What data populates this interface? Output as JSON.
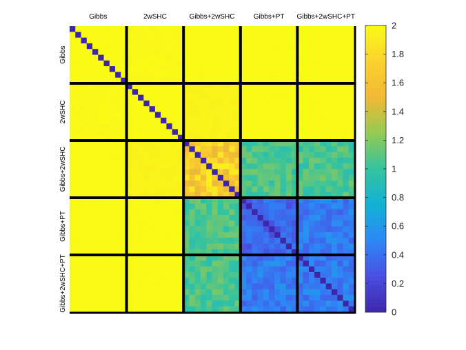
{
  "chart_data": {
    "type": "heatmap",
    "title": "",
    "groups": [
      "Gibbs",
      "2wSHC",
      "Gibbs+2wSHC",
      "Gibbs+PT",
      "Gibbs+2wSHC+PT"
    ],
    "n_per_group": 10,
    "value_range": [
      0,
      2
    ],
    "colormap": [
      "#3e26a8",
      "#4a4fe3",
      "#2e87f7",
      "#12b2d5",
      "#35c39f",
      "#95ca53",
      "#f2b935",
      "#fbd22e",
      "#f9fb15"
    ],
    "colorbar": {
      "ticks": [
        0,
        0.2,
        0.4,
        0.6,
        0.8,
        1,
        1.2,
        1.4,
        1.6,
        1.8,
        2
      ],
      "tick_labels": [
        "0",
        "0.2",
        "0.4",
        "0.6",
        "0.8",
        "1",
        "1.2",
        "1.4",
        "1.6",
        "1.8",
        "2"
      ]
    },
    "block_means": [
      [
        2.0,
        1.98,
        2.0,
        2.0,
        2.0
      ],
      [
        1.98,
        2.0,
        1.95,
        2.0,
        2.0
      ],
      [
        2.0,
        1.95,
        1.7,
        1.05,
        1.05
      ],
      [
        2.0,
        2.0,
        1.05,
        0.35,
        0.45
      ],
      [
        2.0,
        2.0,
        1.05,
        0.45,
        0.45
      ]
    ],
    "diagonal_value": 0,
    "grid": false
  }
}
